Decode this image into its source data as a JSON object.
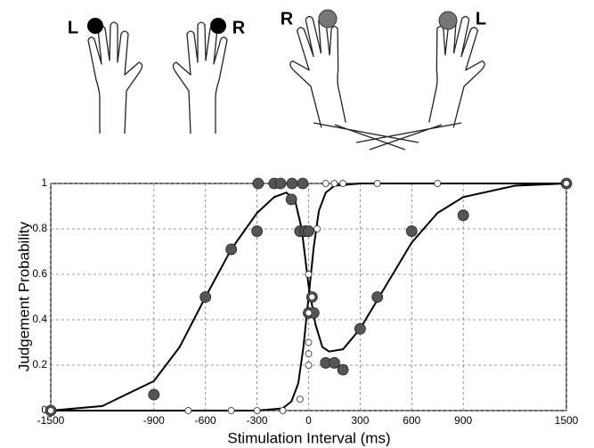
{
  "illustration_labels": [
    "L",
    "R",
    "R",
    "L"
  ],
  "chart_data": {
    "type": "scatter",
    "xlabel": "Stimulation Interval (ms)",
    "ylabel": "Judgement Probability",
    "xlim": [
      -1500,
      1500
    ],
    "ylim": [
      0,
      1
    ],
    "xticks": [
      -1500,
      -900,
      -600,
      -300,
      0,
      300,
      600,
      900,
      1500
    ],
    "yticks": [
      0,
      0.2,
      0.4,
      0.6,
      0.8,
      1
    ],
    "grid": true,
    "series": [
      {
        "style": "points",
        "color": "#555555",
        "x": [
          -1500,
          -900,
          -600,
          -450,
          -300,
          -293,
          -200,
          -163,
          -96,
          -34,
          -100,
          -50,
          -20,
          0,
          20,
          0,
          30,
          100,
          150,
          200,
          300,
          400,
          600,
          900,
          1500
        ],
        "values": [
          0,
          0.07,
          0.5,
          0.71,
          0.79,
          1,
          1,
          1,
          1,
          1,
          0.93,
          0.79,
          0.79,
          0.79,
          0.5,
          0.43,
          0.43,
          0.21,
          0.21,
          0.18,
          0.36,
          0.5,
          0.79,
          0.86,
          1
        ]
      },
      {
        "style": "points",
        "color": "#ffffff",
        "x": [
          -1500,
          -700,
          -450,
          -300,
          -150,
          -50,
          0,
          0,
          0,
          0,
          0,
          20,
          50,
          100,
          150,
          200,
          400,
          750,
          1500
        ],
        "values": [
          0,
          0,
          0,
          0,
          0,
          0.05,
          0.2,
          0.25,
          0.3,
          0.43,
          0.6,
          0.5,
          0.8,
          1,
          1,
          1,
          1,
          1,
          1
        ]
      },
      {
        "style": "line",
        "color": "#000000",
        "x": [
          -1500,
          -1200,
          -900,
          -750,
          -600,
          -450,
          -300,
          -200,
          -130,
          -80,
          -40,
          0,
          40,
          80,
          120,
          200,
          300,
          450,
          600,
          750,
          900,
          1200,
          1500
        ],
        "values": [
          0,
          0.02,
          0.13,
          0.28,
          0.5,
          0.71,
          0.87,
          0.94,
          0.96,
          0.93,
          0.8,
          0.55,
          0.38,
          0.28,
          0.26,
          0.27,
          0.36,
          0.55,
          0.74,
          0.87,
          0.94,
          0.99,
          1
        ]
      },
      {
        "style": "line",
        "color": "#000000",
        "x": [
          -1500,
          -300,
          -150,
          -100,
          -60,
          -30,
          0,
          30,
          60,
          100,
          150,
          300,
          1500
        ],
        "values": [
          0,
          0,
          0.01,
          0.04,
          0.12,
          0.28,
          0.5,
          0.72,
          0.88,
          0.96,
          0.99,
          1,
          1
        ]
      }
    ]
  }
}
